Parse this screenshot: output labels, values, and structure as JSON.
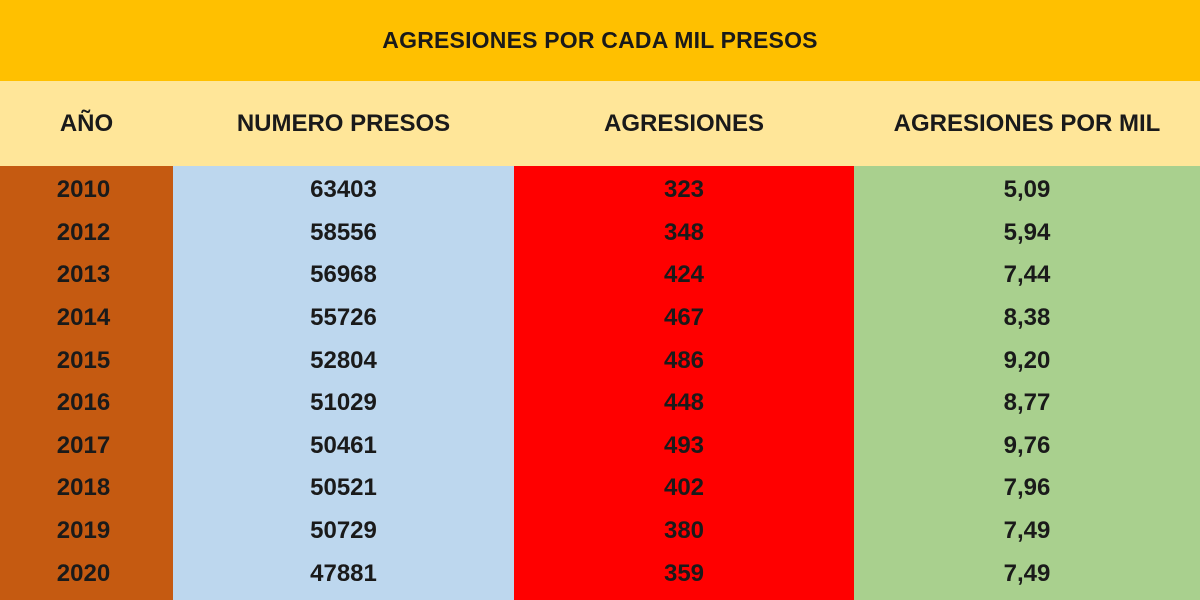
{
  "chart_data": {
    "type": "table",
    "title": "AGRESIONES POR CADA MIL PRESOS",
    "columns": [
      "AÑO",
      "NUMERO PRESOS",
      "AGRESIONES",
      "AGRESIONES POR MIL"
    ],
    "rows": [
      [
        "2010",
        "63403",
        "323",
        "5,09"
      ],
      [
        "2012",
        "58556",
        "348",
        "5,94"
      ],
      [
        "2013",
        "56968",
        "424",
        "7,44"
      ],
      [
        "2014",
        "55726",
        "467",
        "8,38"
      ],
      [
        "2015",
        "52804",
        "486",
        "9,20"
      ],
      [
        "2016",
        "51029",
        "448",
        "8,77"
      ],
      [
        "2017",
        "50461",
        "493",
        "9,76"
      ],
      [
        "2018",
        "50521",
        "402",
        "7,96"
      ],
      [
        "2019",
        "50729",
        "380",
        "7,49"
      ],
      [
        "2020",
        "47881",
        "359",
        "7,49"
      ]
    ]
  },
  "colors": {
    "title_bg": "#FFC000",
    "header_bg": "#FFE699",
    "year_col": "#C55A11",
    "presos_col": "#BDD7EE",
    "agresiones_col": "#FF0000",
    "por_mil_col": "#A9D08E"
  }
}
